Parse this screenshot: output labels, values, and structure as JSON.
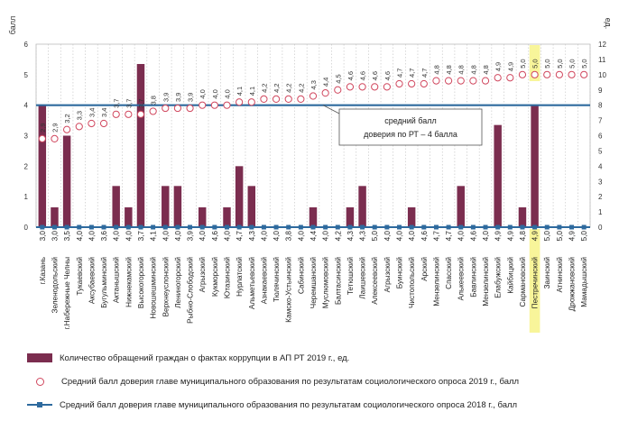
{
  "chart_data": {
    "type": "bar",
    "ylabel_left": "балл",
    "ylabel_right": "ед.",
    "ylim_left": [
      0,
      6
    ],
    "ylim_right": [
      0,
      12
    ],
    "yticks_left": [
      "0",
      "1",
      "2",
      "3",
      "4",
      "5",
      "6"
    ],
    "yticks_right": [
      "0",
      "1",
      "2",
      "3",
      "4",
      "5",
      "6",
      "7",
      "8",
      "9",
      "10",
      "11",
      "12"
    ],
    "categories": [
      "г.Казань",
      "Зеленодольский",
      "г.Набережные Челны",
      "Тукаевский",
      "Аксубаевский",
      "Бугульминский",
      "Актанышский",
      "Нижнекамский",
      "Высокогорский",
      "Новошешминский",
      "Верхнеуслонский",
      "Лениногорский",
      "Рыбно-Слободский",
      "Агрызский",
      "Кукморский",
      "Ютазинский",
      "Нурлатский",
      "Альметьевский",
      "Азнакаевский",
      "Тюлячинский",
      "Камско-Устьинский",
      "Сабинский",
      "Черемшанский",
      "Муслюмовский",
      "Балтасинский",
      "Тетюшский",
      "Лаишевский",
      "Алексеевский",
      "Агрызский",
      "Буинский",
      "Чистопольский",
      "Арский",
      "Мензелинский",
      "Спасский",
      "Алькеевский",
      "Бавлинский",
      "Мензелинский",
      "Елабужский",
      "Кайбицкий",
      "Сармановский",
      "Пестречинский",
      "Заинский",
      "Атнинский",
      "Дрожжановский",
      "Мамадышский"
    ],
    "highlighted_category": "Пестречинский",
    "x_labels_2018": [
      "3,0",
      "3,0",
      "3,5",
      "4,0",
      "4,0",
      "3,6",
      "4,0",
      "4,0",
      "3,7",
      "4,1",
      "4,0",
      "4,0",
      "3,9",
      "4,0",
      "4,6",
      "4,0",
      "4,7",
      "4,3",
      "4,0",
      "4,0",
      "3,8",
      "4,0",
      "4,4",
      "4,0",
      "4,2",
      "4,3",
      "4,3",
      "5,0",
      "4,0",
      "4,0",
      "4,0",
      "4,6",
      "4,7",
      "4,7",
      "4,0",
      "4,6",
      "4,0",
      "4,9",
      "4,9",
      "4,8",
      "4,9",
      "5,0",
      "5,0",
      "4,9",
      "5,0"
    ],
    "series": [
      {
        "name": "Количество обращений граждан о фактах коррупции в АП РТ 2019 г., ед.",
        "kind": "bar",
        "axis": "right",
        "color": "#7b2d4f",
        "values": [
          8,
          1.3,
          6,
          0,
          0,
          0,
          2.7,
          1.3,
          10.7,
          0,
          2.7,
          2.7,
          0,
          1.3,
          0,
          1.3,
          4,
          2.7,
          0,
          0,
          0,
          0,
          1.3,
          0,
          0,
          1.3,
          2.7,
          0,
          0,
          0,
          1.3,
          0,
          0,
          0,
          2.7,
          0,
          0,
          6.7,
          0,
          1.3,
          8,
          0,
          0,
          0,
          0
        ]
      },
      {
        "name": "Средний балл доверия главе муниципального образования по результатам социологического опроса 2019 г., балл",
        "kind": "markers",
        "axis": "left",
        "color": "#d0465d",
        "values": [
          2.9,
          2.9,
          3.2,
          3.3,
          3.4,
          3.4,
          3.7,
          3.7,
          3.7,
          3.8,
          3.9,
          3.9,
          3.9,
          4.0,
          4.0,
          4.0,
          4.1,
          4.1,
          4.2,
          4.2,
          4.2,
          4.2,
          4.3,
          4.4,
          4.5,
          4.6,
          4.6,
          4.6,
          4.6,
          4.7,
          4.7,
          4.7,
          4.8,
          4.8,
          4.8,
          4.8,
          4.8,
          4.9,
          4.9,
          5.0,
          5.0,
          5.0,
          5.0,
          5.0,
          5.0
        ],
        "labels": [
          "2,9",
          "2,9",
          "3,2",
          "3,3",
          "3,4",
          "3,4",
          "3,7",
          "3,7",
          "3,7",
          "3,8",
          "3,9",
          "3,9",
          "3,9",
          "4,0",
          "4,0",
          "4,0",
          "4,1",
          "4,1",
          "4,2",
          "4,2",
          "4,2",
          "4,2",
          "4,3",
          "4,4",
          "4,5",
          "4,6",
          "4,6",
          "4,6",
          "4,6",
          "4,7",
          "4,7",
          "4,7",
          "4,8",
          "4,8",
          "4,8",
          "4,8",
          "4,8",
          "4,9",
          "4,9",
          "5,0",
          "5,0",
          "5,0",
          "5,0",
          "5,0",
          "5,0"
        ]
      },
      {
        "name": "Средний балл доверия главе муниципального образования по результатам социологического опроса 2018 г., балл",
        "kind": "line-markers",
        "axis": "right",
        "color": "#2e6a9e",
        "value": 0
      }
    ],
    "reference_line": {
      "value": 4,
      "axis": "left",
      "color": "#2e6a9e",
      "label": [
        "средний балл",
        "доверия по РТ – 4 балла"
      ]
    },
    "grid": "vertical-dotted",
    "legend": "bottom"
  }
}
